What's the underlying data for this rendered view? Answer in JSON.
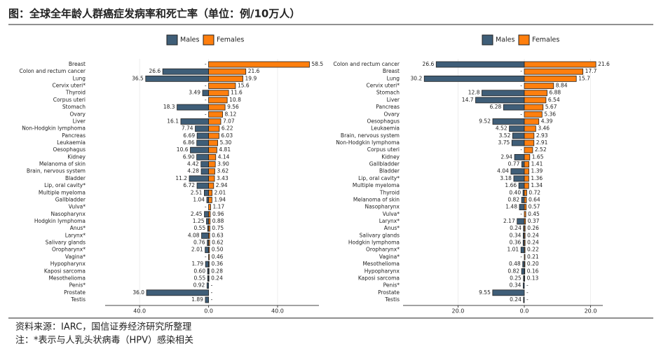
{
  "title": "图：全球全年龄人群癌症发病率和死亡率（单位：例/10万人）",
  "source": "资料来源：IARC，国信证券经济研究所整理",
  "note": "注：*表示与人乳头状病毒（HPV）感染相关",
  "chart_data": [
    {
      "type": "bar",
      "categories": [
        "Breast",
        "Colon and rectum cancer",
        "Lung",
        "Cervix uteri*",
        "Thyroid",
        "Corpus uteri",
        "Stomach",
        "Ovary",
        "Liver",
        "Non-Hodgkin lymphoma",
        "Pancreas",
        "Leukaemia",
        "Oesophagus",
        "Kidney",
        "Melanoma of skin",
        "Brain, nervous system",
        "Bladder",
        "Lip, oral cavity*",
        "Multiple myeloma",
        "Gallbladder",
        "Vulva*",
        "Nasopharynx",
        "Hodgkin lymphoma",
        "Anus*",
        "Larynx*",
        "Salivary glands",
        "Oropharynx*",
        "Vagina*",
        "Hypopharynx",
        "Kaposi sarcoma",
        "Mesothelioma",
        "Penis*",
        "Prostate",
        "Testis"
      ],
      "series": [
        {
          "name": "Males",
          "color": "#3f5e78",
          "values": [
            null,
            26.6,
            36.5,
            null,
            3.49,
            null,
            18.3,
            null,
            16.1,
            7.74,
            6.69,
            6.86,
            10.6,
            6.9,
            4.42,
            4.28,
            11.2,
            6.72,
            2.51,
            1.04,
            null,
            2.45,
            1.25,
            0.55,
            4.08,
            0.76,
            2.01,
            null,
            1.79,
            0.6,
            0.55,
            0.92,
            36.0,
            1.89
          ],
          "value_labels": [
            "-",
            "26.6",
            "36.5",
            "-",
            "3.49",
            "-",
            "18.3",
            "-",
            "16.1",
            "7.74",
            "6.69",
            "6.86",
            "10.6",
            "6.90",
            "4.42",
            "4.28",
            "11.2",
            "6.72",
            "2.51",
            "1.04",
            "-",
            "2.45",
            "1.25",
            "0.55",
            "4.08",
            "0.76",
            "2.01",
            "-",
            "1.79",
            "0.60",
            "0.55",
            "0.92",
            "36.0",
            "1.89"
          ]
        },
        {
          "name": "Females",
          "color": "#ff7f0e",
          "values": [
            58.5,
            21.6,
            19.9,
            15.6,
            11.6,
            10.8,
            9.56,
            8.12,
            7.07,
            6.22,
            6.03,
            5.3,
            4.81,
            4.14,
            3.9,
            3.62,
            3.43,
            2.94,
            2.01,
            1.94,
            1.17,
            0.96,
            0.88,
            0.75,
            0.63,
            0.62,
            0.5,
            0.46,
            0.36,
            0.28,
            0.24,
            null,
            null,
            null
          ],
          "value_labels": [
            "58.5",
            "21.6",
            "19.9",
            "15.6",
            "11.6",
            "10.8",
            "9.56",
            "8.12",
            "7.07",
            "6.22",
            "6.03",
            "5.30",
            "4.81",
            "4.14",
            "3.90",
            "3.62",
            "3.43",
            "2.94",
            "2.01",
            "1.94",
            "1.17",
            "0.96",
            "0.88",
            "0.75",
            "0.63",
            "0.62",
            "0.50",
            "0.46",
            "0.36",
            "0.28",
            "0.24",
            "-",
            "-",
            "-"
          ]
        }
      ],
      "xlim": [
        -60,
        64
      ],
      "xticks": [
        {
          "value": -40,
          "label": "40.0"
        },
        {
          "value": 0,
          "label": "0.0"
        },
        {
          "value": 40,
          "label": "40.0"
        }
      ]
    },
    {
      "type": "bar",
      "categories": [
        "Colon and rectum cancer",
        "Breast",
        "Lung",
        "Cervix uteri*",
        "Stomach",
        "Liver",
        "Pancreas",
        "Ovary",
        "Oesophagus",
        "Leukaemia",
        "Brain, nervous system",
        "Non-Hodgkin lymphoma",
        "Corpus uteri",
        "Kidney",
        "Gallbladder",
        "Bladder",
        "Lip, oral cavity*",
        "Multiple myeloma",
        "Thyroid",
        "Melanoma of skin",
        "Nasopharynx",
        "Vulva*",
        "Larynx*",
        "Anus*",
        "Salivary glands",
        "Hodgkin lymphoma",
        "Oropharynx*",
        "Vagina*",
        "Mesothelioma",
        "Hypopharynx",
        "Kaposi sarcoma",
        "Penis*",
        "Prostate",
        "Testis"
      ],
      "series": [
        {
          "name": "Males",
          "color": "#3f5e78",
          "values": [
            26.6,
            null,
            30.2,
            null,
            12.8,
            14.7,
            6.28,
            null,
            9.52,
            4.52,
            3.52,
            3.75,
            null,
            2.94,
            0.77,
            4.04,
            3.18,
            1.66,
            0.4,
            0.82,
            1.48,
            null,
            2.17,
            0.24,
            0.34,
            0.36,
            1.01,
            null,
            0.48,
            0.82,
            0.25,
            0.34,
            9.55,
            0.24
          ],
          "value_labels": [
            "26.6",
            "-",
            "30.2",
            "-",
            "12.8",
            "14.7",
            "6.28",
            "-",
            "9.52",
            "4.52",
            "3.52",
            "3.75",
            "-",
            "2.94",
            "0.77",
            "4.04",
            "3.18",
            "1.66",
            "0.40",
            "0.82",
            "1.48",
            "-",
            "2.17",
            "0.24",
            "0.34",
            "0.36",
            "1.01",
            "-",
            "0.48",
            "0.82",
            "0.25",
            "0.34",
            "9.55",
            "0.24"
          ]
        },
        {
          "name": "Females",
          "color": "#ff7f0e",
          "values": [
            21.6,
            17.7,
            15.7,
            8.84,
            6.88,
            6.54,
            5.67,
            5.36,
            4.39,
            3.46,
            2.93,
            2.91,
            2.52,
            1.65,
            1.41,
            1.39,
            1.36,
            1.34,
            0.72,
            0.64,
            0.57,
            0.45,
            0.37,
            0.26,
            0.24,
            0.24,
            0.22,
            0.21,
            0.2,
            0.16,
            0.13,
            null,
            null,
            null
          ],
          "value_labels": [
            "21.6",
            "17.7",
            "15.7",
            "8.84",
            "6.88",
            "6.54",
            "5.67",
            "5.36",
            "4.39",
            "3.46",
            "2.93",
            "2.91",
            "2.52",
            "1.65",
            "1.41",
            "1.39",
            "1.36",
            "1.34",
            "0.72",
            "0.64",
            "0.57",
            "0.45",
            "0.37",
            "0.26",
            "0.24",
            "0.24",
            "0.22",
            "0.21",
            "0.20",
            "0.16",
            "0.13",
            "-",
            "-",
            "-"
          ]
        }
      ],
      "xlim": [
        -36.6,
        23.7
      ],
      "xticks": [
        {
          "value": -20,
          "label": "20.0"
        },
        {
          "value": 0,
          "label": "0.0"
        },
        {
          "value": 20,
          "label": "20.0"
        }
      ]
    }
  ]
}
